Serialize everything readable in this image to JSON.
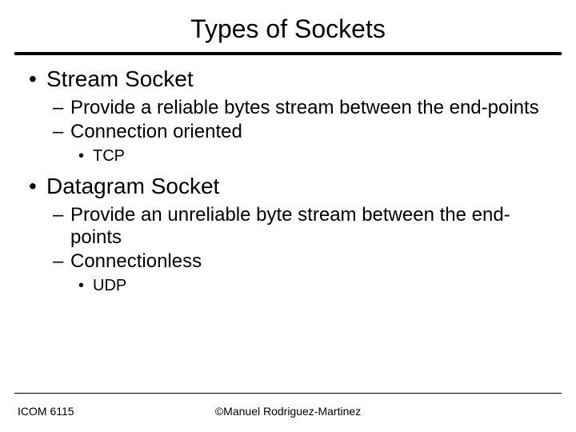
{
  "title": "Types of Sockets",
  "content": {
    "item1": {
      "label": "Stream Socket",
      "sub1": "Provide a reliable bytes stream between the end-points",
      "sub2": "Connection oriented",
      "subsub1": "TCP"
    },
    "item2": {
      "label": "Datagram Socket",
      "sub1": "Provide an unreliable byte stream between the end-points",
      "sub2": "Connectionless",
      "subsub1": "UDP"
    }
  },
  "footer": {
    "left": "ICOM 6115",
    "center": "©Manuel Rodriguez-Martinez"
  },
  "colors": {
    "background": "#ffffff",
    "text": "#000000",
    "rule": "#000000"
  },
  "fonts": {
    "title_size": 32,
    "lvl1_size": 28,
    "lvl2_size": 24,
    "lvl3_size": 20,
    "footer_size": 14,
    "family": "Arial"
  }
}
